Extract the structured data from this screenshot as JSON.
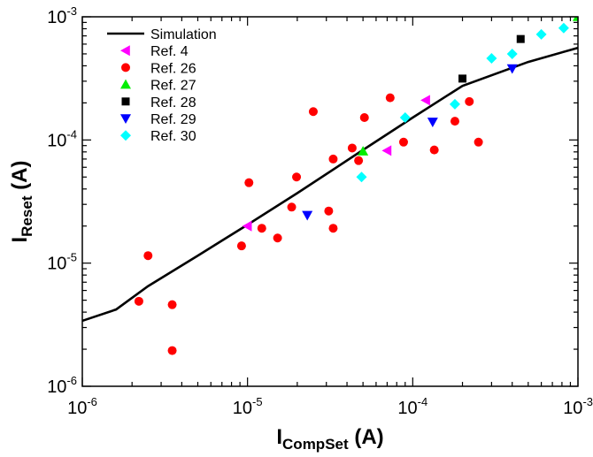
{
  "chart_data": {
    "type": "scatter",
    "x_scale": "log",
    "y_scale": "log",
    "xlim": [
      1e-06,
      0.001
    ],
    "ylim": [
      1e-06,
      0.001
    ],
    "x_ticks": [
      {
        "value": 1e-06,
        "base": "10",
        "exp": "-6"
      },
      {
        "value": 1e-05,
        "base": "10",
        "exp": "-5"
      },
      {
        "value": 0.0001,
        "base": "10",
        "exp": "-4"
      },
      {
        "value": 0.001,
        "base": "10",
        "exp": "-3"
      }
    ],
    "y_ticks": [
      {
        "value": 1e-06,
        "base": "10",
        "exp": "-6"
      },
      {
        "value": 1e-05,
        "base": "10",
        "exp": "-5"
      },
      {
        "value": 0.0001,
        "base": "10",
        "exp": "-4"
      },
      {
        "value": 0.001,
        "base": "10",
        "exp": "-3"
      }
    ],
    "xlabel": {
      "main": "I",
      "sub": "CompSet",
      "unit": " (A)"
    },
    "ylabel": {
      "main": "I",
      "sub": "Reset",
      "unit": " (A)"
    },
    "grid": false,
    "legend_position": "top-left",
    "series": [
      {
        "name": "Simulation",
        "kind": "line",
        "color": "#000000",
        "points": [
          [
            1e-06,
            3.4e-06
          ],
          [
            1.6e-06,
            4.2e-06
          ],
          [
            2.5e-06,
            6.5e-06
          ],
          [
            5e-06,
            1.15e-05
          ],
          [
            1e-05,
            2.05e-05
          ],
          [
            2e-05,
            3.7e-05
          ],
          [
            5e-05,
            8.3e-05
          ],
          [
            0.0001,
            0.000152
          ],
          [
            0.0002,
            0.000275
          ],
          [
            0.0005,
            0.00043
          ],
          [
            0.001,
            0.00056
          ]
        ]
      },
      {
        "name": "Ref. 4",
        "kind": "scatter",
        "marker": "triangle-left",
        "color": "#ff00ff",
        "points": [
          [
            1e-05,
            2e-05
          ],
          [
            7e-05,
            8.2e-05
          ],
          [
            0.00012,
            0.00021
          ]
        ]
      },
      {
        "name": "Ref. 26",
        "kind": "scatter",
        "marker": "circle",
        "color": "#ff0000",
        "points": [
          [
            2.2e-06,
            4.9e-06
          ],
          [
            2.5e-06,
            1.15e-05
          ],
          [
            3.5e-06,
            4.6e-06
          ],
          [
            3.5e-06,
            1.95e-06
          ],
          [
            9.2e-06,
            1.38e-05
          ],
          [
            1.02e-05,
            4.5e-05
          ],
          [
            1.22e-05,
            1.92e-05
          ],
          [
            1.52e-05,
            1.6e-05
          ],
          [
            1.85e-05,
            2.85e-05
          ],
          [
            1.98e-05,
            5e-05
          ],
          [
            2.5e-05,
            0.00017
          ],
          [
            3.1e-05,
            2.65e-05
          ],
          [
            3.3e-05,
            1.92e-05
          ],
          [
            3.3e-05,
            7e-05
          ],
          [
            4.3e-05,
            8.6e-05
          ],
          [
            4.7e-05,
            6.8e-05
          ],
          [
            5.1e-05,
            0.000152
          ],
          [
            7.3e-05,
            0.00022
          ],
          [
            8.8e-05,
            9.6e-05
          ],
          [
            0.000135,
            8.3e-05
          ],
          [
            0.00018,
            0.000142
          ],
          [
            0.00022,
            0.000205
          ],
          [
            0.00025,
            9.6e-05
          ]
        ]
      },
      {
        "name": "Ref. 27",
        "kind": "scatter",
        "marker": "triangle-up",
        "color": "#00ee00",
        "points": [
          [
            5e-05,
            8.1e-05
          ],
          [
            0.001,
            0.001
          ]
        ]
      },
      {
        "name": "Ref. 28",
        "kind": "scatter",
        "marker": "square",
        "color": "#000000",
        "points": [
          [
            0.0002,
            0.000315
          ],
          [
            0.00045,
            0.00066
          ]
        ]
      },
      {
        "name": "Ref. 29",
        "kind": "scatter",
        "marker": "triangle-down",
        "color": "#0000ff",
        "points": [
          [
            2.3e-05,
            2.45e-05
          ],
          [
            0.000132,
            0.00014
          ],
          [
            0.0004,
            0.00038
          ]
        ]
      },
      {
        "name": "Ref. 30",
        "kind": "scatter",
        "marker": "diamond",
        "color": "#00ffff",
        "points": [
          [
            4.9e-05,
            5e-05
          ],
          [
            9e-05,
            0.000152
          ],
          [
            0.00018,
            0.000195
          ],
          [
            0.0003,
            0.00046
          ],
          [
            0.0004,
            0.0005
          ],
          [
            0.0006,
            0.00072
          ],
          [
            0.00082,
            0.00081
          ]
        ]
      }
    ]
  }
}
